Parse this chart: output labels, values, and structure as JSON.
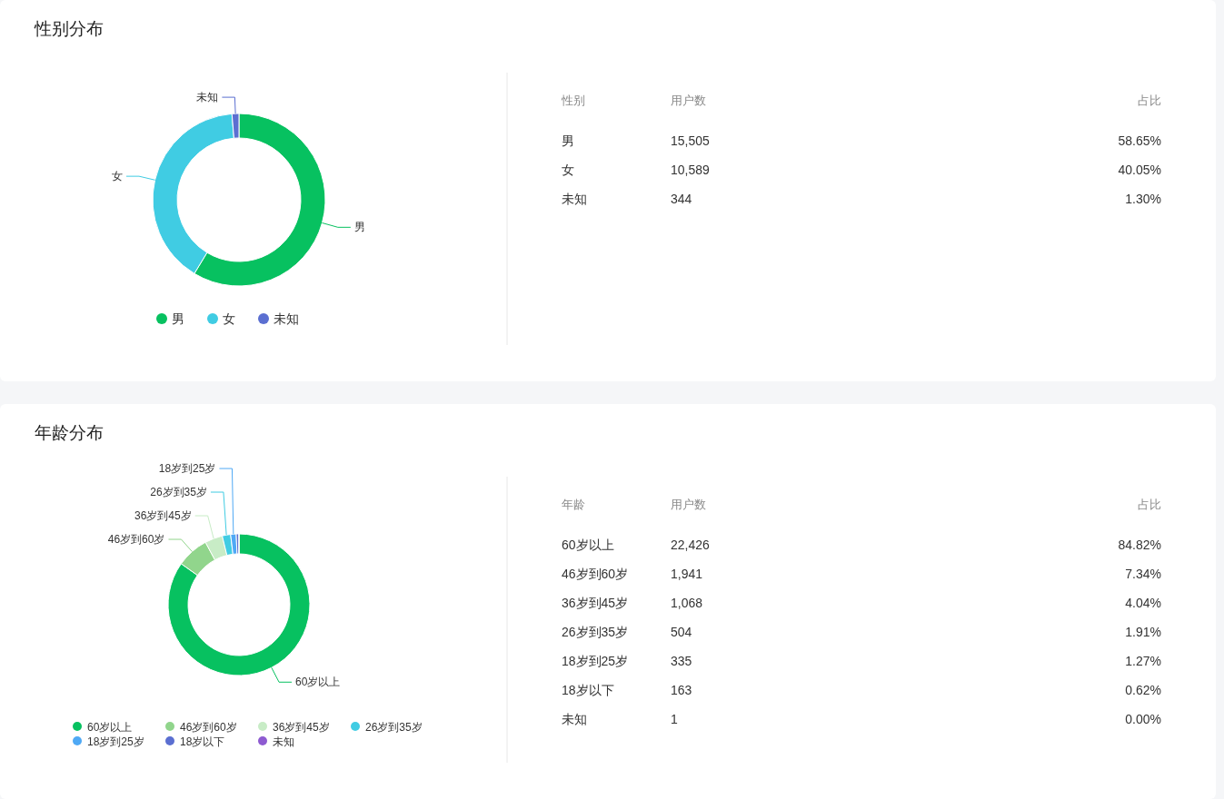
{
  "chart_data": [
    {
      "type": "donut",
      "title": "性别分布",
      "categories": [
        "男",
        "女",
        "未知"
      ],
      "values": [
        58.65,
        40.05,
        1.3
      ],
      "colors": [
        "#07c160",
        "#40cce3",
        "#5b6fd1"
      ],
      "legend": "bottom"
    },
    {
      "type": "other",
      "annotations": [
        "性别",
        "用户数",
        "占比",
        "男",
        "15,505",
        "58.65%",
        "女",
        "10,589",
        "40.05%",
        "未知",
        "344",
        "1.30%"
      ]
    },
    {
      "type": "donut",
      "title": "年龄分布",
      "categories": [
        "60岁以上",
        "46岁到60岁",
        "36岁到45岁",
        "26岁到35岁",
        "18岁到25岁",
        "18岁以下",
        "未知"
      ],
      "values": [
        84.82,
        7.34,
        4.04,
        1.91,
        1.27,
        0.62,
        0.0
      ],
      "colors": [
        "#07c160",
        "#91d58c",
        "#c8ecc6",
        "#40cce3",
        "#4fa9f5",
        "#5b6fd1",
        "#8e5bd1"
      ],
      "legend": "bottom"
    },
    {
      "type": "other",
      "annotations": [
        "年龄",
        "用户数",
        "占比",
        "60岁以上",
        "22,426",
        "84.82%",
        "46岁到60岁",
        "1,941",
        "7.34%",
        "36岁到45岁",
        "1,068",
        "4.04%",
        "26岁到35岁",
        "504",
        "1.91%",
        "18岁到25岁",
        "335",
        "1.27%",
        "18岁以下",
        "163",
        "0.62%",
        "未知",
        "1",
        "0.00%"
      ]
    }
  ]
}
